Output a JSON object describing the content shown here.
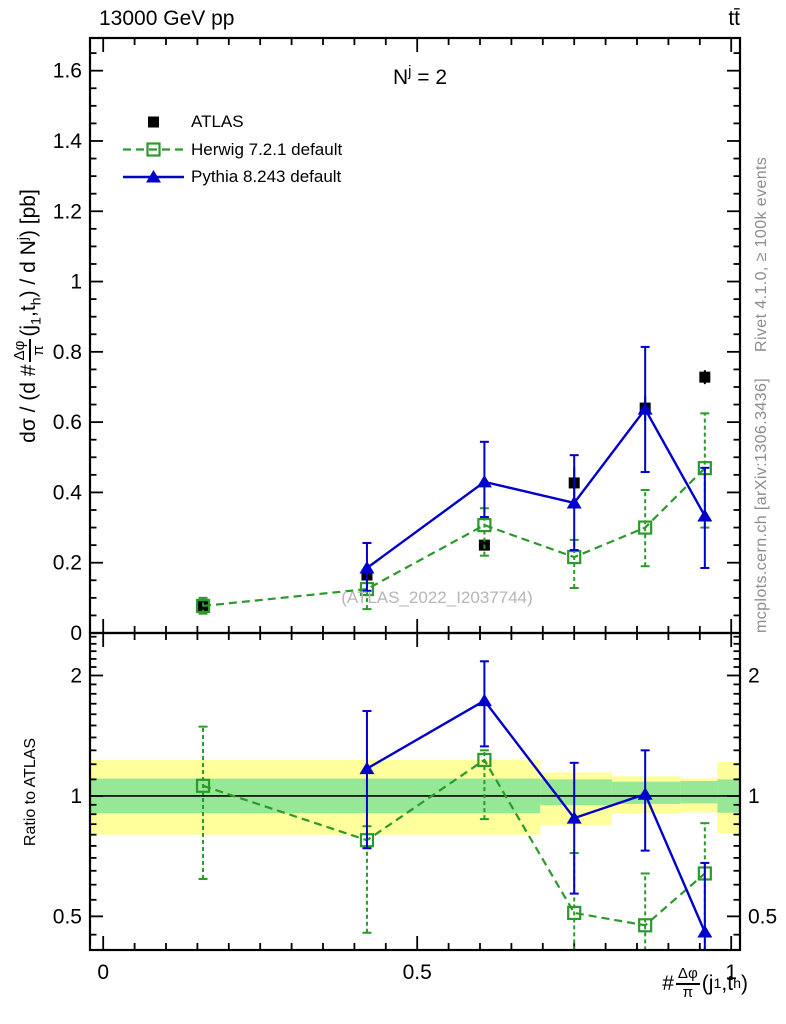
{
  "header": {
    "left": "13000 GeV pp",
    "right": "tt̄"
  },
  "panel_label": {
    "pre": "N",
    "sup": "j",
    "post": " = 2"
  },
  "legend": [
    {
      "label": "ATLAS"
    },
    {
      "label": "Herwig 7.2.1 default"
    },
    {
      "label": "Pythia 8.243 default"
    }
  ],
  "watermark": "(ATLAS_2022_I2037744)",
  "side_texts": {
    "top": "Rivet 4.1.0, ≥ 100k events",
    "bottom": "mcplots.cern.ch [arXiv:1306.3436]"
  },
  "labels": {
    "main_ylabel": {
      "pre": "dσ / (d #",
      "frac_num": "Δφ",
      "frac_den": "π",
      "mid1": "(j",
      "sub1": "1",
      "mid2": ",t",
      "sub2": "h",
      "mid3": ") / d N",
      "sup": "j",
      "post": ") [pb]"
    },
    "ratio_ylabel": "Ratio to ATLAS",
    "xlabel": {
      "pre": "#",
      "frac_num": "Δφ",
      "frac_den": "π",
      "mid1": "(j",
      "sub1": "1",
      "mid2": ",t",
      "sub2": "h",
      "post": ")"
    }
  },
  "colors": {
    "atlas": "#000000",
    "herwig": "#2b992b",
    "pythia": "#0000cc",
    "band_outer": "#ffff9c",
    "band_inner": "#96e896",
    "frame": "#000000",
    "muted_text": "#8c8c8c",
    "watermark": "#b6b6b6"
  },
  "chart_data": {
    "type": "line",
    "title": "N^j = 2",
    "xlabel": "#Δφ/π(j1,th)",
    "ylabel": "dσ / (d #Δφ/π(j1,th) / d N^j) [pb]",
    "ratio_ylabel": "Ratio to ATLAS",
    "x_axis": {
      "range": [
        -0.021,
        1.014
      ],
      "minor_step": 0.05,
      "major_ticks": [
        {
          "v": 0,
          "label": "0"
        },
        {
          "v": 0.5,
          "label": "0.5"
        },
        {
          "v": 1,
          "label": "1"
        }
      ]
    },
    "y_axis_top": {
      "range": [
        0,
        1.693
      ],
      "minor_step": 0.05,
      "major_ticks": [
        {
          "v": 0,
          "label": "0"
        },
        {
          "v": 0.2,
          "label": "0.2"
        },
        {
          "v": 0.4,
          "label": "0.4"
        },
        {
          "v": 0.6,
          "label": "0.6"
        },
        {
          "v": 0.8,
          "label": "0.8"
        },
        {
          "v": 1.0,
          "label": "1"
        },
        {
          "v": 1.2,
          "label": "1.2"
        },
        {
          "v": 1.4,
          "label": "1.4"
        },
        {
          "v": 1.6,
          "label": "1.6"
        }
      ]
    },
    "y_axis_bottom": {
      "scale": "log",
      "range": [
        0.412,
        2.554
      ],
      "major_ticks": [
        {
          "v": 0.5,
          "label": "0.5"
        },
        {
          "v": 1,
          "label": "1"
        },
        {
          "v": 2,
          "label": "2"
        }
      ],
      "minor_ticks": [
        0.45,
        0.55,
        0.6,
        0.65,
        0.7,
        0.75,
        0.8,
        0.85,
        0.9,
        0.95,
        1.1,
        1.2,
        1.3,
        1.4,
        1.5,
        1.6,
        1.7,
        1.8,
        1.9,
        2.1,
        2.2,
        2.3,
        2.4,
        2.5
      ]
    },
    "series": [
      {
        "name": "ATLAS",
        "color_key": "atlas",
        "marker": "square",
        "fill": "filled",
        "line": "none",
        "caps": false,
        "points": [
          {
            "x": 0.159,
            "y": 0.075,
            "lo": 0.067,
            "hi": 0.083
          },
          {
            "x": 0.42,
            "y": 0.165,
            "lo": 0.145,
            "hi": 0.185
          },
          {
            "x": 0.607,
            "y": 0.25,
            "lo": 0.235,
            "hi": 0.265
          },
          {
            "x": 0.75,
            "y": 0.427,
            "lo": 0.383,
            "hi": 0.472
          },
          {
            "x": 0.863,
            "y": 0.64,
            "lo": 0.605,
            "hi": 0.675
          },
          {
            "x": 0.958,
            "y": 0.728,
            "lo": 0.708,
            "hi": 0.748
          }
        ]
      },
      {
        "name": "Herwig 7.2.1 default",
        "color_key": "herwig",
        "marker": "square",
        "fill": "open",
        "line": "dashed",
        "caps": true,
        "points": [
          {
            "x": 0.159,
            "y": 0.077,
            "lo": 0.055,
            "hi": 0.1
          },
          {
            "x": 0.42,
            "y": 0.125,
            "lo": 0.068,
            "hi": 0.175
          },
          {
            "x": 0.607,
            "y": 0.307,
            "lo": 0.22,
            "hi": 0.355
          },
          {
            "x": 0.75,
            "y": 0.216,
            "lo": 0.128,
            "hi": 0.265
          },
          {
            "x": 0.863,
            "y": 0.3,
            "lo": 0.19,
            "hi": 0.407
          },
          {
            "x": 0.958,
            "y": 0.469,
            "lo": 0.3,
            "hi": 0.625
          }
        ]
      },
      {
        "name": "Pythia 8.243 default",
        "color_key": "pythia",
        "marker": "triangle",
        "fill": "filled",
        "line": "solid",
        "caps": true,
        "points": [
          {
            "x": 0.42,
            "y": 0.185,
            "lo": 0.12,
            "hi": 0.256
          },
          {
            "x": 0.607,
            "y": 0.43,
            "lo": 0.33,
            "hi": 0.544
          },
          {
            "x": 0.75,
            "y": 0.37,
            "lo": 0.236,
            "hi": 0.506
          },
          {
            "x": 0.863,
            "y": 0.637,
            "lo": 0.458,
            "hi": 0.814
          },
          {
            "x": 0.958,
            "y": 0.333,
            "lo": 0.185,
            "hi": 0.47
          }
        ]
      }
    ],
    "ratio_series": [
      {
        "name": "Herwig 7.2.1 default",
        "color_key": "herwig",
        "marker": "square",
        "fill": "open",
        "line": "dashed",
        "caps": true,
        "points": [
          {
            "x": 0.159,
            "y": 1.06,
            "lo": 0.62,
            "hi": 1.49
          },
          {
            "x": 0.42,
            "y": 0.775,
            "lo": 0.455,
            "hi": 0.84
          },
          {
            "x": 0.607,
            "y": 1.23,
            "lo": 0.875,
            "hi": 1.3
          },
          {
            "x": 0.75,
            "y": 0.51,
            "lo": 0.395,
            "hi": 0.72
          },
          {
            "x": 0.863,
            "y": 0.475,
            "lo": 0.395,
            "hi": 0.64
          },
          {
            "x": 0.958,
            "y": 0.64,
            "lo": 0.395,
            "hi": 0.855
          }
        ]
      },
      {
        "name": "Pythia 8.243 default",
        "color_key": "pythia",
        "marker": "triangle",
        "fill": "filled",
        "line": "solid",
        "caps": true,
        "points": [
          {
            "x": 0.42,
            "y": 1.17,
            "lo": 0.74,
            "hi": 1.63
          },
          {
            "x": 0.607,
            "y": 1.73,
            "lo": 1.33,
            "hi": 2.17
          },
          {
            "x": 0.75,
            "y": 0.88,
            "lo": 0.57,
            "hi": 1.21
          },
          {
            "x": 0.863,
            "y": 1.01,
            "lo": 0.73,
            "hi": 1.3
          },
          {
            "x": 0.958,
            "y": 0.457,
            "lo": 0.38,
            "hi": 0.68
          }
        ]
      }
    ],
    "ratio_bands": [
      {
        "x1": -0.021,
        "x2": 0.696,
        "outer_lo": 0.8,
        "outer_hi": 1.23,
        "inner_lo": 0.905,
        "inner_hi": 1.105
      },
      {
        "x1": 0.696,
        "x2": 0.81,
        "outer_lo": 0.845,
        "outer_hi": 1.145,
        "inner_lo": 0.948,
        "inner_hi": 1.1
      },
      {
        "x1": 0.81,
        "x2": 0.919,
        "outer_lo": 0.905,
        "outer_hi": 1.12,
        "inner_lo": 0.955,
        "inner_hi": 1.085
      },
      {
        "x1": 0.919,
        "x2": 0.978,
        "outer_lo": 0.91,
        "outer_hi": 1.105,
        "inner_lo": 0.958,
        "inner_hi": 1.09
      },
      {
        "x1": 0.978,
        "x2": 1.014,
        "outer_lo": 0.805,
        "outer_hi": 1.215,
        "inner_lo": 0.908,
        "inner_hi": 1.1
      }
    ],
    "reference_line": 1
  }
}
